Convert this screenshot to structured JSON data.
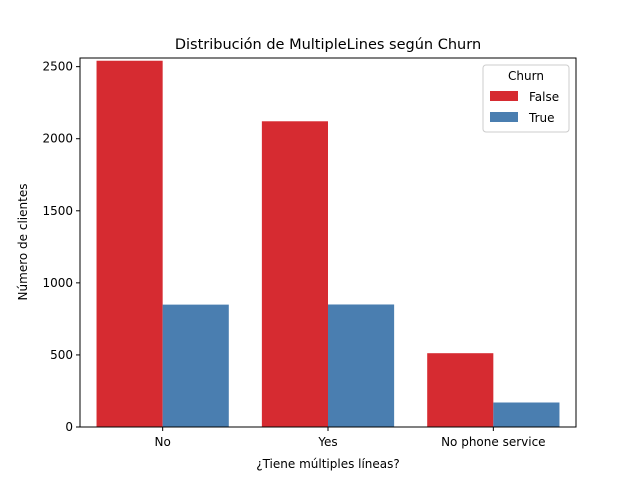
{
  "chart_data": {
    "type": "bar",
    "title": "Distribución de MultipleLines según Churn",
    "xlabel": "¿Tiene múltiples líneas?",
    "ylabel": "Número de clientes",
    "categories": [
      "No",
      "Yes",
      "No phone service"
    ],
    "series": [
      {
        "name": "False",
        "values": [
          2541,
          2121,
          512
        ],
        "color": "#d62b31"
      },
      {
        "name": "True",
        "values": [
          849,
          850,
          170
        ],
        "color": "#4a7eb0"
      }
    ],
    "ylim": [
      0,
      2560
    ],
    "yticks": [
      0,
      500,
      1000,
      1500,
      2000,
      2500
    ],
    "legend": {
      "title": "Churn",
      "placement": "top-right"
    },
    "grid": false
  }
}
